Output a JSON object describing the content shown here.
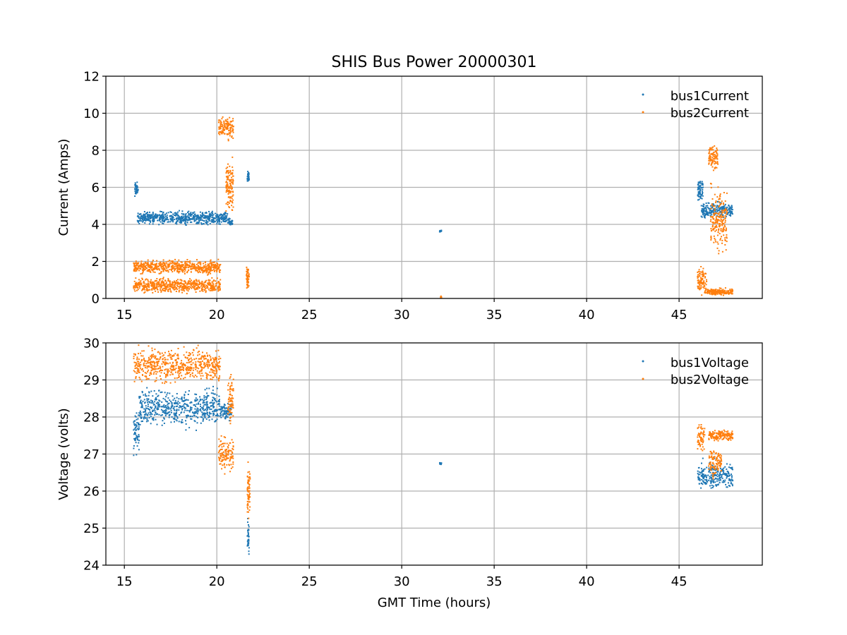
{
  "chart_data": [
    {
      "type": "scatter",
      "title": "SHIS Bus Power 20000301",
      "xlabel": "",
      "ylabel": "Current (Amps)",
      "xlim": [
        14,
        49.5
      ],
      "ylim": [
        0,
        12
      ],
      "x_ticks": [
        15,
        20,
        25,
        30,
        35,
        40,
        45
      ],
      "y_ticks": [
        0,
        2,
        4,
        6,
        8,
        10,
        12
      ],
      "grid": true,
      "legend": "top-right",
      "series": [
        {
          "name": "bus1Current",
          "color": "#1f77b4",
          "segments": [
            {
              "x": [
                15.55,
                15.75
              ],
              "y": [
                5.4,
                6.4
              ]
            },
            {
              "x": [
                15.7,
                20.6
              ],
              "y": [
                3.9,
                4.8
              ]
            },
            {
              "x": [
                20.6,
                20.85
              ],
              "y": [
                3.8,
                4.4
              ]
            },
            {
              "x": [
                21.65,
                21.75
              ],
              "y": [
                6.1,
                7.0
              ]
            },
            {
              "x": [
                32.05,
                32.15
              ],
              "y": [
                3.55,
                3.7
              ]
            },
            {
              "x": [
                46.0,
                46.3
              ],
              "y": [
                5.0,
                6.7
              ]
            },
            {
              "x": [
                46.2,
                47.9
              ],
              "y": [
                4.2,
                5.3
              ]
            }
          ]
        },
        {
          "name": "bus2Current",
          "color": "#ff7f0e",
          "segments": [
            {
              "x": [
                15.5,
                20.2
              ],
              "y": [
                1.2,
                2.2
              ]
            },
            {
              "x": [
                15.5,
                20.2
              ],
              "y": [
                0.2,
                1.2
              ]
            },
            {
              "x": [
                20.1,
                20.9
              ],
              "y": [
                8.4,
                10.1
              ]
            },
            {
              "x": [
                20.5,
                20.9
              ],
              "y": [
                4.0,
                8.0
              ]
            },
            {
              "x": [
                21.6,
                21.75
              ],
              "y": [
                0.2,
                2.0
              ]
            },
            {
              "x": [
                32.1,
                32.15
              ],
              "y": [
                0.0,
                0.15
              ]
            },
            {
              "x": [
                46.0,
                46.5
              ],
              "y": [
                0.0,
                1.9
              ]
            },
            {
              "x": [
                46.5,
                47.9
              ],
              "y": [
                0.1,
                0.6
              ]
            },
            {
              "x": [
                46.6,
                47.1
              ],
              "y": [
                6.8,
                8.5
              ]
            },
            {
              "x": [
                46.7,
                47.6
              ],
              "y": [
                2.0,
                6.5
              ]
            }
          ]
        }
      ]
    },
    {
      "type": "scatter",
      "title": "",
      "xlabel": "GMT Time (hours)",
      "ylabel": "Voltage (volts)",
      "xlim": [
        14,
        49.5
      ],
      "ylim": [
        24,
        30
      ],
      "x_ticks": [
        15,
        20,
        25,
        30,
        35,
        40,
        45
      ],
      "y_ticks": [
        24,
        25,
        26,
        27,
        28,
        29,
        30
      ],
      "grid": true,
      "legend": "top-right",
      "series": [
        {
          "name": "bus1Voltage",
          "color": "#1f77b4",
          "segments": [
            {
              "x": [
                15.5,
                15.8
              ],
              "y": [
                26.85,
                28.3
              ]
            },
            {
              "x": [
                15.8,
                20.2
              ],
              "y": [
                27.6,
                28.9
              ]
            },
            {
              "x": [
                20.2,
                20.8
              ],
              "y": [
                27.8,
                28.5
              ]
            },
            {
              "x": [
                21.65,
                21.75
              ],
              "y": [
                24.05,
                25.5
              ]
            },
            {
              "x": [
                32.05,
                32.15
              ],
              "y": [
                26.7,
                26.8
              ]
            },
            {
              "x": [
                46.0,
                47.9
              ],
              "y": [
                25.95,
                26.9
              ]
            }
          ]
        },
        {
          "name": "bus2Voltage",
          "color": "#ff7f0e",
          "segments": [
            {
              "x": [
                15.5,
                20.2
              ],
              "y": [
                28.8,
                30.0
              ]
            },
            {
              "x": [
                20.1,
                20.9
              ],
              "y": [
                26.4,
                27.6
              ]
            },
            {
              "x": [
                20.6,
                20.9
              ],
              "y": [
                27.6,
                29.4
              ]
            },
            {
              "x": [
                21.65,
                21.8
              ],
              "y": [
                24.8,
                27.0
              ]
            },
            {
              "x": [
                46.0,
                46.4
              ],
              "y": [
                27.0,
                27.9
              ]
            },
            {
              "x": [
                46.6,
                47.9
              ],
              "y": [
                27.3,
                27.7
              ]
            },
            {
              "x": [
                46.6,
                47.3
              ],
              "y": [
                26.3,
                27.3
              ]
            }
          ]
        }
      ]
    }
  ]
}
